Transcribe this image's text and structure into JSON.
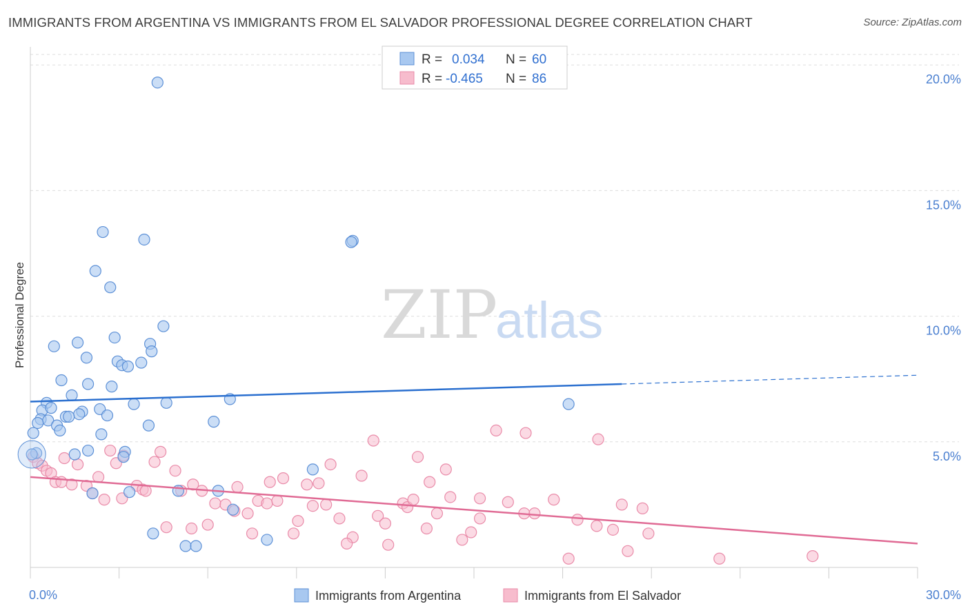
{
  "title": "IMMIGRANTS FROM ARGENTINA VS IMMIGRANTS FROM EL SALVADOR PROFESSIONAL DEGREE CORRELATION CHART",
  "source": "Source: ZipAtlas.com",
  "watermark": {
    "zip": "ZIP",
    "atlas": "atlas"
  },
  "colors": {
    "argentina_fill": "#a8c8f0",
    "argentina_stroke": "#5b8fd6",
    "argentina_line": "#2a6fcf",
    "elsalvador_fill": "#f7bccd",
    "elsalvador_stroke": "#e98aa8",
    "elsalvador_line": "#e06a94",
    "tick_label": "#4a7fd0",
    "grid": "#dddddd"
  },
  "legend": {
    "rows": [
      {
        "r_label": "R =",
        "r_value": "0.034",
        "n_label": "N =",
        "n_value": "60"
      },
      {
        "r_label": "R =",
        "r_value": "-0.465",
        "n_label": "N =",
        "n_value": "86"
      }
    ]
  },
  "chart_data": {
    "type": "scatter",
    "xlabel": "",
    "ylabel": "Professional Degree",
    "xlim": [
      0,
      30
    ],
    "ylim": [
      0,
      20.5
    ],
    "x_ticks": [
      {
        "value": 0,
        "label": "0.0%"
      },
      {
        "value": 30,
        "label": "30.0%"
      }
    ],
    "y_ticks": [
      {
        "value": 5,
        "label": "5.0%"
      },
      {
        "value": 10,
        "label": "10.0%"
      },
      {
        "value": 15,
        "label": "15.0%"
      },
      {
        "value": 20,
        "label": "20.0%"
      }
    ],
    "grid": "horizontal dashed",
    "legend_position": "top-center",
    "series": [
      {
        "name": "Immigrants from Argentina",
        "r": 0.034,
        "n": 60,
        "trend": {
          "x0": 0,
          "y0": 6.6,
          "x1": 20,
          "y1": 7.3,
          "x_dash_end": 30,
          "y_dash_end": 7.65
        },
        "points": [
          [
            4.3,
            19.3
          ],
          [
            2.45,
            13.35
          ],
          [
            3.85,
            13.05
          ],
          [
            10.9,
            13.0
          ],
          [
            10.85,
            12.95
          ],
          [
            2.2,
            11.8
          ],
          [
            2.7,
            11.15
          ],
          [
            4.5,
            9.6
          ],
          [
            2.85,
            9.15
          ],
          [
            1.6,
            8.95
          ],
          [
            4.05,
            8.9
          ],
          [
            0.8,
            8.8
          ],
          [
            4.1,
            8.6
          ],
          [
            1.9,
            8.35
          ],
          [
            2.95,
            8.2
          ],
          [
            3.1,
            8.05
          ],
          [
            3.3,
            8.0
          ],
          [
            3.75,
            8.15
          ],
          [
            1.05,
            7.45
          ],
          [
            1.95,
            7.3
          ],
          [
            2.75,
            7.2
          ],
          [
            1.4,
            6.85
          ],
          [
            6.75,
            6.7
          ],
          [
            0.55,
            6.55
          ],
          [
            3.5,
            6.5
          ],
          [
            4.6,
            6.55
          ],
          [
            18.2,
            6.5
          ],
          [
            0.4,
            6.25
          ],
          [
            0.7,
            6.35
          ],
          [
            2.35,
            6.3
          ],
          [
            1.75,
            6.2
          ],
          [
            1.65,
            6.1
          ],
          [
            2.6,
            6.05
          ],
          [
            1.2,
            6.0
          ],
          [
            1.3,
            6.0
          ],
          [
            0.35,
            5.9
          ],
          [
            0.6,
            5.85
          ],
          [
            0.25,
            5.75
          ],
          [
            6.2,
            5.8
          ],
          [
            0.9,
            5.65
          ],
          [
            4.0,
            5.65
          ],
          [
            1.0,
            5.45
          ],
          [
            2.4,
            5.3
          ],
          [
            0.1,
            5.35
          ],
          [
            1.95,
            4.65
          ],
          [
            3.2,
            4.6
          ],
          [
            0.2,
            4.55
          ],
          [
            1.5,
            4.5
          ],
          [
            3.15,
            4.4
          ],
          [
            9.55,
            3.9
          ],
          [
            5.0,
            3.05
          ],
          [
            6.35,
            3.05
          ],
          [
            2.1,
            2.95
          ],
          [
            3.35,
            3.0
          ],
          [
            6.85,
            2.3
          ],
          [
            4.15,
            1.35
          ],
          [
            8.0,
            1.1
          ],
          [
            5.25,
            0.85
          ],
          [
            5.6,
            0.85
          ],
          [
            0.05,
            4.5
          ]
        ]
      },
      {
        "name": "Immigrants from El Salvador",
        "r": -0.465,
        "n": 86,
        "trend": {
          "x0": 0,
          "y0": 3.6,
          "x1": 30,
          "y1": 0.95
        },
        "points": [
          [
            0.1,
            4.4
          ],
          [
            0.25,
            4.15
          ],
          [
            0.4,
            4.05
          ],
          [
            0.55,
            3.85
          ],
          [
            0.7,
            3.75
          ],
          [
            1.15,
            4.35
          ],
          [
            1.6,
            4.1
          ],
          [
            0.85,
            3.4
          ],
          [
            1.05,
            3.4
          ],
          [
            1.4,
            3.3
          ],
          [
            1.9,
            3.25
          ],
          [
            2.3,
            3.6
          ],
          [
            2.7,
            4.65
          ],
          [
            2.9,
            4.15
          ],
          [
            4.4,
            4.6
          ],
          [
            4.2,
            4.2
          ],
          [
            3.15,
            4.45
          ],
          [
            4.9,
            3.85
          ],
          [
            2.1,
            2.95
          ],
          [
            2.5,
            2.7
          ],
          [
            3.1,
            2.75
          ],
          [
            3.6,
            3.25
          ],
          [
            3.8,
            3.1
          ],
          [
            3.9,
            3.05
          ],
          [
            5.1,
            3.05
          ],
          [
            5.5,
            3.3
          ],
          [
            5.8,
            3.05
          ],
          [
            6.25,
            2.55
          ],
          [
            6.6,
            2.5
          ],
          [
            7.0,
            3.2
          ],
          [
            6.9,
            2.25
          ],
          [
            7.35,
            2.15
          ],
          [
            7.7,
            2.65
          ],
          [
            8.0,
            2.55
          ],
          [
            8.35,
            2.65
          ],
          [
            8.1,
            3.4
          ],
          [
            8.55,
            3.55
          ],
          [
            9.35,
            3.3
          ],
          [
            9.75,
            3.35
          ],
          [
            10.15,
            4.1
          ],
          [
            9.55,
            2.45
          ],
          [
            10.0,
            2.5
          ],
          [
            10.45,
            1.95
          ],
          [
            9.05,
            1.85
          ],
          [
            10.9,
            1.2
          ],
          [
            10.7,
            0.95
          ],
          [
            11.2,
            3.65
          ],
          [
            11.6,
            5.05
          ],
          [
            11.75,
            2.05
          ],
          [
            12.0,
            1.75
          ],
          [
            12.1,
            0.9
          ],
          [
            12.6,
            2.55
          ],
          [
            12.75,
            2.4
          ],
          [
            12.95,
            2.7
          ],
          [
            13.1,
            4.4
          ],
          [
            13.5,
            3.4
          ],
          [
            13.4,
            1.55
          ],
          [
            13.75,
            2.15
          ],
          [
            14.05,
            3.9
          ],
          [
            14.2,
            2.8
          ],
          [
            14.9,
            1.4
          ],
          [
            15.2,
            1.95
          ],
          [
            14.6,
            1.1
          ],
          [
            15.2,
            2.75
          ],
          [
            15.75,
            5.45
          ],
          [
            16.15,
            2.6
          ],
          [
            16.7,
            2.15
          ],
          [
            16.75,
            5.35
          ],
          [
            17.05,
            2.15
          ],
          [
            17.7,
            2.7
          ],
          [
            18.2,
            0.35
          ],
          [
            18.5,
            1.9
          ],
          [
            19.2,
            5.1
          ],
          [
            19.15,
            1.65
          ],
          [
            19.7,
            1.5
          ],
          [
            20.0,
            2.5
          ],
          [
            20.2,
            0.65
          ],
          [
            20.7,
            2.35
          ],
          [
            20.9,
            1.35
          ],
          [
            8.9,
            1.35
          ],
          [
            7.5,
            1.35
          ],
          [
            5.45,
            1.55
          ],
          [
            4.6,
            1.6
          ],
          [
            6.0,
            1.7
          ],
          [
            23.3,
            0.35
          ],
          [
            26.45,
            0.45
          ]
        ]
      }
    ]
  },
  "bottom_legend": [
    {
      "label": "Immigrants from Argentina"
    },
    {
      "label": "Immigrants from El Salvador"
    }
  ]
}
